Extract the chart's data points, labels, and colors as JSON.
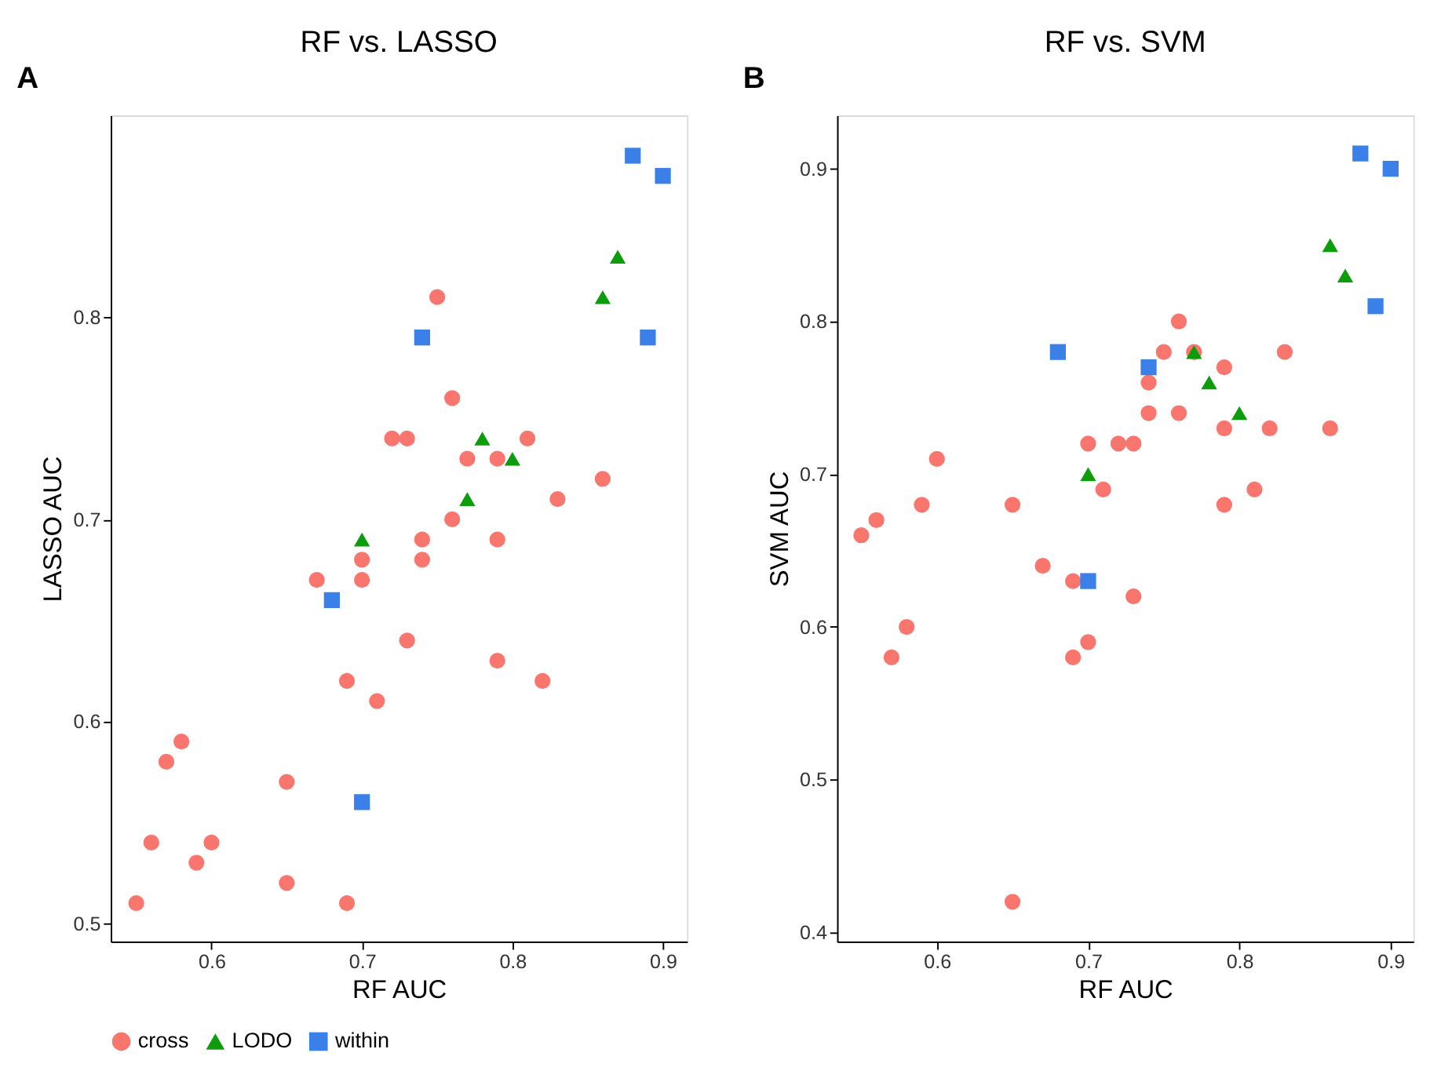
{
  "chart_data": [
    {
      "type": "scatter",
      "title": "RF vs. LASSO",
      "annotations": [
        "A"
      ],
      "xlabel": "RF AUC",
      "ylabel": "LASSO AUC",
      "xlim": [
        0.533,
        0.916
      ],
      "ylim": [
        0.491,
        0.9
      ],
      "xticks": [
        0.6,
        0.7,
        0.8,
        0.9
      ],
      "yticks": [
        0.5,
        0.6,
        0.7,
        0.8
      ],
      "grid": false,
      "legend": "bottom",
      "series": [
        {
          "name": "cross",
          "color": "#f8766d",
          "marker": "circle",
          "x": [
            0.55,
            0.56,
            0.57,
            0.58,
            0.59,
            0.6,
            0.65,
            0.65,
            0.67,
            0.69,
            0.69,
            0.7,
            0.7,
            0.71,
            0.72,
            0.73,
            0.73,
            0.74,
            0.74,
            0.75,
            0.76,
            0.76,
            0.77,
            0.79,
            0.79,
            0.79,
            0.81,
            0.82,
            0.83,
            0.86
          ],
          "values": [
            0.51,
            0.54,
            0.58,
            0.59,
            0.53,
            0.54,
            0.57,
            0.52,
            0.67,
            0.62,
            0.51,
            0.68,
            0.67,
            0.61,
            0.74,
            0.74,
            0.64,
            0.69,
            0.68,
            0.81,
            0.76,
            0.7,
            0.73,
            0.73,
            0.69,
            0.63,
            0.74,
            0.62,
            0.71,
            0.72
          ]
        },
        {
          "name": "LODO",
          "color": "#0c9c0c",
          "marker": "triangle",
          "x": [
            0.7,
            0.77,
            0.78,
            0.8,
            0.86,
            0.87
          ],
          "values": [
            0.69,
            0.71,
            0.74,
            0.73,
            0.81,
            0.83
          ]
        },
        {
          "name": "within",
          "color": "#3a80e8",
          "marker": "square",
          "x": [
            0.68,
            0.7,
            0.74,
            0.88,
            0.89,
            0.9
          ],
          "values": [
            0.66,
            0.56,
            0.79,
            0.88,
            0.79,
            0.87
          ]
        }
      ]
    },
    {
      "type": "scatter",
      "title": "RF vs. SVM",
      "annotations": [
        "B"
      ],
      "xlabel": "RF AUC",
      "ylabel": "SVM AUC",
      "xlim": [
        0.534,
        0.915
      ],
      "ylim": [
        0.394,
        0.935
      ],
      "xticks": [
        0.6,
        0.7,
        0.8,
        0.9
      ],
      "yticks": [
        0.4,
        0.5,
        0.6,
        0.7,
        0.8,
        0.9
      ],
      "grid": false,
      "legend": "bottom",
      "series": [
        {
          "name": "cross",
          "color": "#f8766d",
          "marker": "circle",
          "x": [
            0.55,
            0.56,
            0.57,
            0.58,
            0.59,
            0.6,
            0.65,
            0.65,
            0.67,
            0.69,
            0.69,
            0.7,
            0.7,
            0.71,
            0.72,
            0.73,
            0.73,
            0.74,
            0.74,
            0.75,
            0.76,
            0.76,
            0.77,
            0.79,
            0.79,
            0.79,
            0.81,
            0.82,
            0.83,
            0.86
          ],
          "values": [
            0.66,
            0.67,
            0.58,
            0.6,
            0.68,
            0.71,
            0.68,
            0.42,
            0.64,
            0.63,
            0.58,
            0.72,
            0.59,
            0.69,
            0.72,
            0.72,
            0.62,
            0.76,
            0.74,
            0.78,
            0.8,
            0.74,
            0.78,
            0.77,
            0.73,
            0.68,
            0.69,
            0.73,
            0.78,
            0.73
          ]
        },
        {
          "name": "LODO",
          "color": "#0c9c0c",
          "marker": "triangle",
          "x": [
            0.7,
            0.77,
            0.78,
            0.8,
            0.86,
            0.87
          ],
          "values": [
            0.7,
            0.78,
            0.76,
            0.74,
            0.85,
            0.83
          ]
        },
        {
          "name": "within",
          "color": "#3a80e8",
          "marker": "square",
          "x": [
            0.68,
            0.7,
            0.74,
            0.88,
            0.89,
            0.9
          ],
          "values": [
            0.78,
            0.63,
            0.77,
            0.91,
            0.81,
            0.9
          ]
        }
      ]
    }
  ]
}
